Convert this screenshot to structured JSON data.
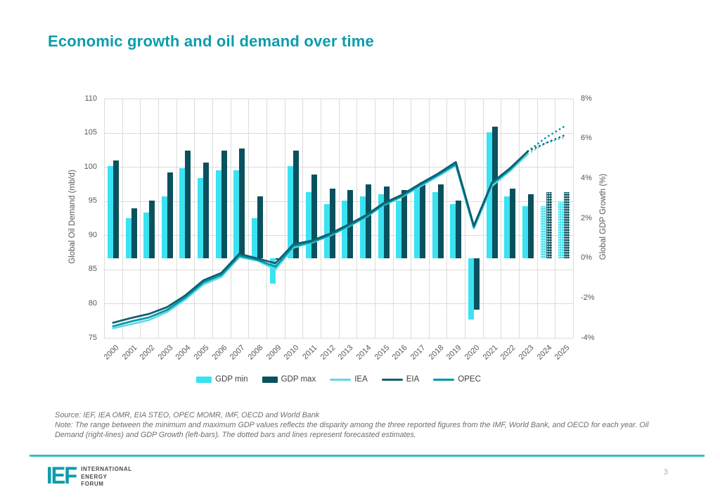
{
  "slide": {
    "title": "Economic growth and oil demand over time",
    "page_number": "3"
  },
  "notes": {
    "source": "Source: IEF, IEA OMR, EIA STEO, OPEC MOMR, IMF, OECD and World Bank",
    "note": "Note: The range between the minimum and maximum GDP values reflects the disparity among the three reported figures from the IMF, World Bank, and OECD for each year. Oil Demand (right-lines) and GDP Growth (left-bars). The dotted bars and lines represent forecasted estimates."
  },
  "footer": {
    "logo_text": "IEF",
    "org_lines": [
      "INTERNATIONAL",
      "ENERGY",
      "FORUM"
    ]
  },
  "colors": {
    "accent_teal": "#0C9CAC",
    "gdp_min": "#3BE2F2",
    "gdp_max": "#0A515E",
    "iea_line": "#5ED9E8",
    "eia_line": "#115E6E",
    "opec_line": "#0097A8",
    "grid": "#DCDCDC",
    "footer_rule": "#38BEC4"
  },
  "chart_data": {
    "type": "combo-bar-line",
    "categories": [
      "2000",
      "2001",
      "2002",
      "2003",
      "2004",
      "2005",
      "2006",
      "2007",
      "2008",
      "2009",
      "2010",
      "2011",
      "2012",
      "2013",
      "2014",
      "2015",
      "2016",
      "2017",
      "2018",
      "2019",
      "2020",
      "2021",
      "2022",
      "2023",
      "2024",
      "2025"
    ],
    "left_axis": {
      "label": "Global Oil Demand (mb/d)",
      "min": 75,
      "max": 110,
      "ticks": [
        110,
        105,
        100,
        95,
        90,
        85,
        80,
        75
      ]
    },
    "right_axis": {
      "label": "Global GDP Growth (%)",
      "min": -4,
      "max": 8,
      "ticks": [
        8,
        6,
        4,
        2,
        0,
        -2,
        -4
      ],
      "tick_labels": [
        "8%",
        "6%",
        "4%",
        "2%",
        "0%",
        "-2%",
        "-4%"
      ]
    },
    "bars": {
      "axis": "right",
      "forecast_from_index": 24,
      "series": [
        {
          "name": "GDP min",
          "color": "#3BE2F2",
          "values": [
            4.6,
            2.0,
            2.3,
            3.1,
            4.5,
            4.0,
            4.4,
            4.4,
            2.0,
            -1.3,
            4.6,
            3.3,
            2.7,
            2.9,
            3.1,
            3.2,
            2.9,
            3.5,
            3.3,
            2.7,
            -3.1,
            6.3,
            3.1,
            2.6,
            2.6,
            2.8
          ]
        },
        {
          "name": "GDP max",
          "color": "#0A515E",
          "values": [
            4.9,
            2.5,
            2.9,
            4.3,
            5.4,
            4.8,
            5.4,
            5.5,
            3.1,
            -0.1,
            5.4,
            4.2,
            3.5,
            3.4,
            3.7,
            3.6,
            3.4,
            3.8,
            3.7,
            2.9,
            -2.6,
            6.6,
            3.5,
            3.2,
            3.3,
            3.3
          ]
        }
      ]
    },
    "lines": {
      "axis": "left",
      "forecast_from_index": 23,
      "series": [
        {
          "name": "IEA",
          "color": "#5ED9E8",
          "values": [
            76.4,
            77.0,
            77.6,
            78.8,
            80.6,
            82.8,
            83.9,
            86.8,
            86.3,
            85.0,
            88.2,
            88.9,
            89.9,
            91.2,
            92.6,
            94.4,
            95.6,
            97.1,
            98.6,
            100.2,
            91.0,
            97.2,
            99.4,
            101.9,
            103.5,
            104.3
          ]
        },
        {
          "name": "OPEC",
          "color": "#0097A8",
          "values": [
            76.7,
            77.4,
            78.0,
            79.1,
            80.9,
            83.1,
            84.2,
            87.0,
            86.4,
            85.4,
            88.4,
            89.0,
            90.0,
            91.3,
            92.7,
            94.5,
            95.7,
            97.3,
            98.8,
            100.4,
            91.2,
            97.5,
            99.6,
            102.3,
            104.3,
            105.9
          ]
        },
        {
          "name": "EIA",
          "color": "#115E6E",
          "values": [
            77.2,
            77.9,
            78.5,
            79.5,
            81.2,
            83.4,
            84.5,
            87.3,
            86.6,
            85.9,
            88.7,
            89.2,
            90.2,
            91.5,
            92.9,
            94.7,
            95.9,
            97.5,
            99.0,
            100.7,
            91.4,
            97.7,
            99.8,
            102.3,
            103.5,
            104.6
          ]
        }
      ]
    },
    "legend": [
      {
        "label": "GDP min",
        "type": "bar",
        "color": "#3BE2F2"
      },
      {
        "label": "GDP max",
        "type": "bar",
        "color": "#0A515E"
      },
      {
        "label": "IEA",
        "type": "line",
        "color": "#5ED9E8"
      },
      {
        "label": "EIA",
        "type": "line",
        "color": "#115E6E"
      },
      {
        "label": "OPEC",
        "type": "line",
        "color": "#0097A8"
      }
    ]
  }
}
